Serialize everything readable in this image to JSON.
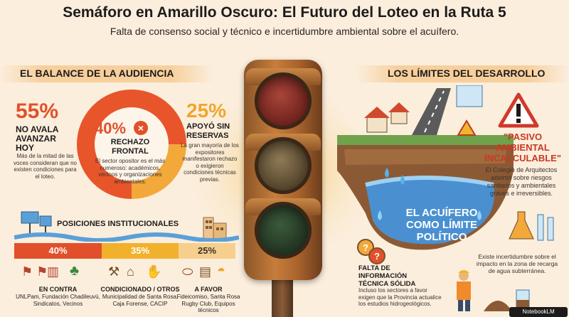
{
  "title": "Semáforo en Amarillo Oscuro: El Futuro del Loteo en la Ruta 5",
  "subtitle": "Falta de consenso social y técnico e incertidumbre ambiental sobre el acuífero.",
  "left_section": {
    "heading": "EL BALANCE DE LA AUDIENCIA",
    "stat_55": {
      "value": "55%",
      "label_l1": "NO AVALA",
      "label_l2": "AVANZAR",
      "label_l3": "HOY",
      "desc": "Más de la mitad de las voces consideran que no existen condiciones para el loteo."
    },
    "stat_40": {
      "value": "40%",
      "label_l1": "RECHAZO",
      "label_l2": "FRONTAL",
      "desc": "El sector opositor es el más numeroso: académicos, vecinos y organizaciones ambientales."
    },
    "stat_25": {
      "value": "25%",
      "label_l1": "APOYÓ SIN",
      "label_l2": "RESERVAS",
      "desc": "La gran mayoría de los expositores manifestaron rechazo o exigieron condiciones técnicas previas."
    },
    "donut": {
      "red_fraction": 0.75,
      "yellow_fraction": 0.25,
      "red": "#e8552b",
      "yellow": "#f3a83a"
    },
    "positions": {
      "heading": "POSICIONES INSTITUCIONALES",
      "segments": [
        {
          "pct": "40%",
          "color": "#e1502a",
          "head": "EN CONTRA",
          "desc_l1": "UNLPam, Fundación Chadileuvú,",
          "desc_l2": "Sindicatos, Vecinos"
        },
        {
          "pct": "35%",
          "color": "#f2b12c",
          "head": "CONDICIONADO / OTROS",
          "desc_l1": "Municipalidad de Santa Rosa,",
          "desc_l2": "Caja Forense, CACIP"
        },
        {
          "pct": "25%",
          "color": "#f7cf8c",
          "head": "A FAVOR",
          "desc_l1": "Fideicomiso, Santa Rosa",
          "desc_l2": "Rugby Club, Equipos técnicos"
        }
      ]
    }
  },
  "right_section": {
    "heading": "LOS LÍMITES DEL DESARROLLO",
    "pasivo": {
      "title_l1": "\"PASIVO",
      "title_l2": "AMBIENTAL",
      "title_l3": "INCALCULABLE\"",
      "desc": "El Colegio de Arquitectos advirtió sobre riesgos sanitarios y ambientales graves e irreversibles."
    },
    "acuifero": {
      "l1": "EL ACUÍFERO",
      "l2": "COMO LÍMITE",
      "l3": "POLÍTICO"
    },
    "falta": {
      "title_l1": "FALTA DE",
      "title_l2": "INFORMACIÓN",
      "title_l3": "TÉCNICA SÓLIDA",
      "desc": "Incluso los sectores a favor exigen que la Provincia actualice los estudios hidrogeológicos."
    },
    "incertidumbre": "Existe incertidumbre sobre el impacto en la zona de recarga de agua subterránea."
  },
  "brand": "NotebookLM",
  "colors": {
    "background": "#fbeedd",
    "red": "#e1502a",
    "yellow": "#f1a52a",
    "water": "#4a90d0"
  }
}
